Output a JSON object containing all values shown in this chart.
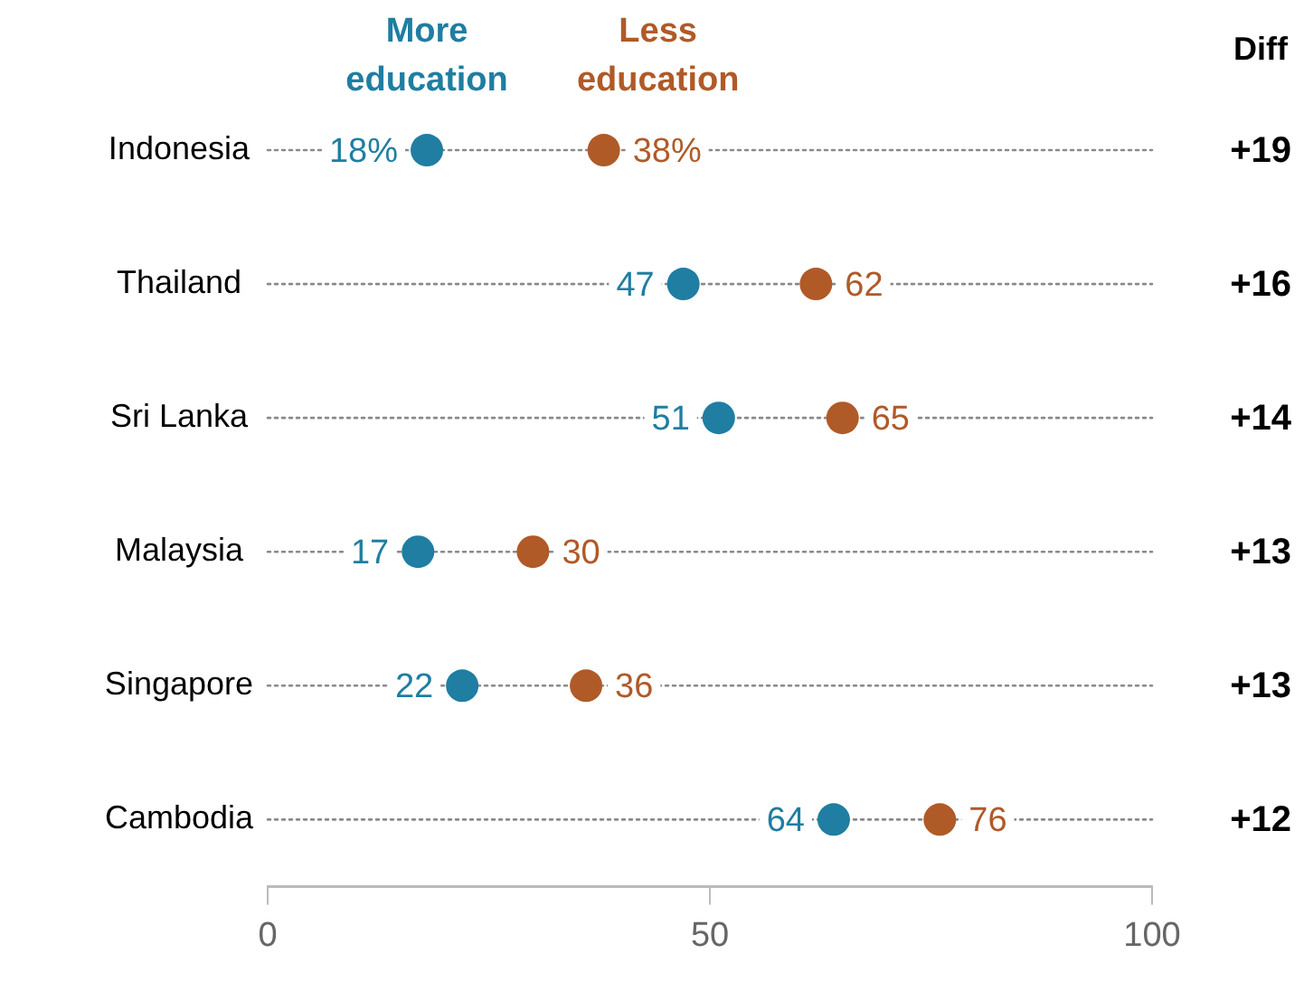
{
  "chart_data": {
    "type": "scatter",
    "orientation": "horizontal",
    "categories": [
      "Indonesia",
      "Thailand",
      "Sri Lanka",
      "Malaysia",
      "Singapore",
      "Cambodia"
    ],
    "series": [
      {
        "name": "More education",
        "color": "#1f7ea1",
        "values": [
          18,
          47,
          51,
          17,
          22,
          64
        ],
        "value_labels": [
          "18%",
          "47",
          "51",
          "17",
          "22",
          "64"
        ]
      },
      {
        "name": "Less education",
        "color": "#b05a28",
        "values": [
          38,
          62,
          65,
          30,
          36,
          76
        ],
        "value_labels": [
          "38%",
          "62",
          "65",
          "30",
          "36",
          "76"
        ]
      }
    ],
    "xlim": [
      0,
      100
    ],
    "xticks": [
      0,
      50,
      100
    ],
    "grid": "y",
    "line_style": "dotted",
    "marker": "circle",
    "legend": "top",
    "annotations": [
      "Diff",
      "+19",
      "+16",
      "+14",
      "+13",
      "+13",
      "+12"
    ]
  }
}
